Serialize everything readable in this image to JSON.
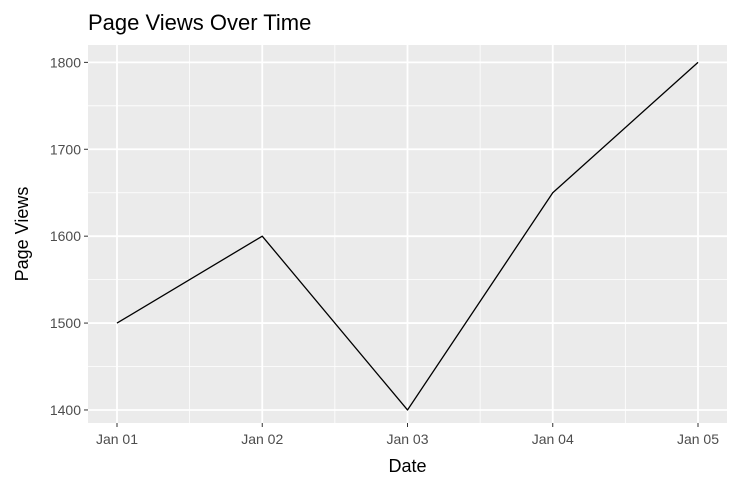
{
  "chart_data": {
    "type": "line",
    "title": "Page Views Over Time",
    "xlabel": "Date",
    "ylabel": "Page Views",
    "x": [
      "Jan 01",
      "Jan 02",
      "Jan 03",
      "Jan 04",
      "Jan 05"
    ],
    "series": [
      {
        "values": [
          1500,
          1600,
          1400,
          1650,
          1800
        ]
      }
    ],
    "ylim": [
      1385,
      1820
    ],
    "yticks": [
      1400,
      1500,
      1600,
      1700,
      1800
    ],
    "grid": true,
    "legend": "none",
    "colors": {
      "panel": "#EBEBEB",
      "grid_major": "#FFFFFF",
      "line": "#000000",
      "tick_text": "#4D4D4D",
      "tick_mark": "#333333"
    }
  }
}
